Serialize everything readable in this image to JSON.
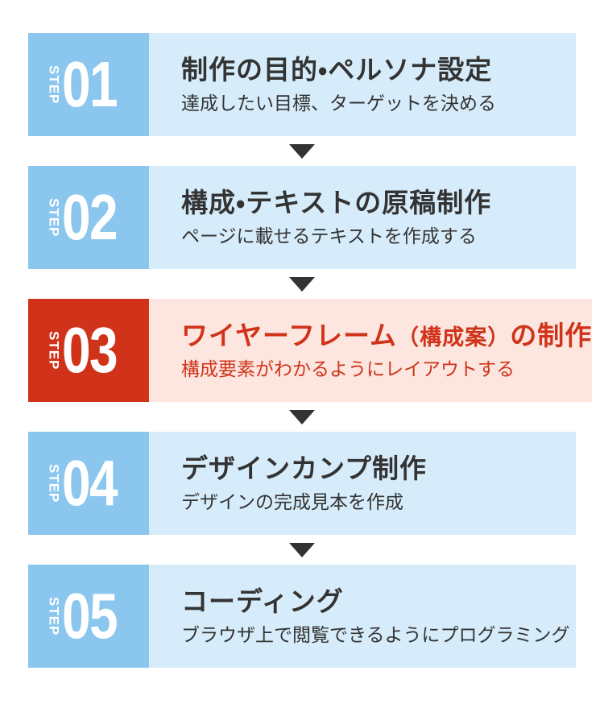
{
  "palette": {
    "page_bg": "#FFFFFF",
    "blue_badge": "#8AC6EE",
    "blue_row": "#D7ECFA",
    "red_badge": "#D0331A",
    "red_row": "#FCE6DF",
    "text_dark": "#333333",
    "arrow": "#333333",
    "white": "#FFFFFF"
  },
  "arrow_icon": "triangle-down",
  "steps": [
    {
      "label": "STEP",
      "num": "01",
      "title": "制作の目的・ペルソナ設定",
      "subtitle": "達成したい目標、ターゲットを決める",
      "highlight": false
    },
    {
      "label": "STEP",
      "num": "02",
      "title": "構成・テキストの原稿制作",
      "subtitle": "ページに載せるテキストを作成する",
      "highlight": false
    },
    {
      "label": "STEP",
      "num": "03",
      "title": "ワイヤーフレーム",
      "title_paren": "（構成案）",
      "title_post": "の制作",
      "subtitle": "構成要素がわかるようにレイアウトする",
      "highlight": true
    },
    {
      "label": "STEP",
      "num": "04",
      "title": "デザインカンプ制作",
      "subtitle": "デザインの完成見本を作成",
      "highlight": false
    },
    {
      "label": "STEP",
      "num": "05",
      "title": "コーディング",
      "subtitle": "ブラウザ上で閲覧できるようにプログラミング",
      "highlight": false
    }
  ]
}
